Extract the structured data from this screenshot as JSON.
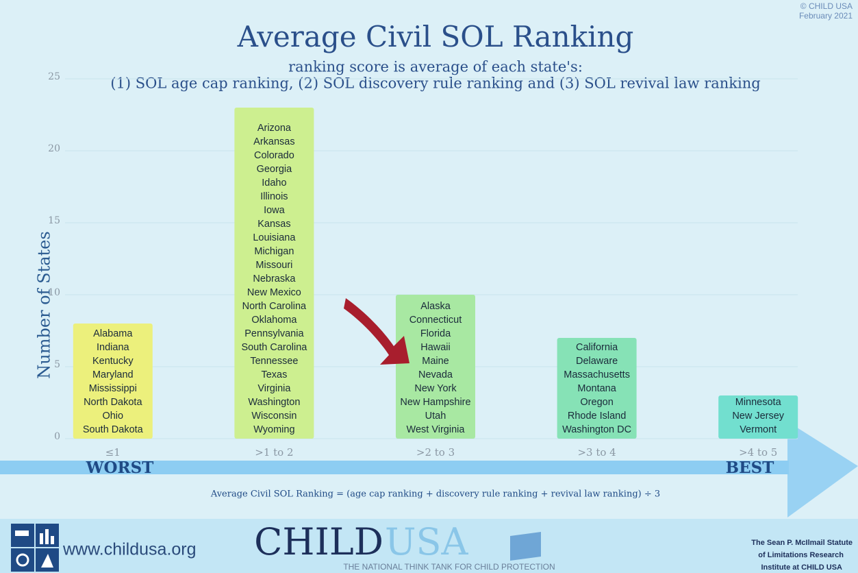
{
  "chart_data": {
    "type": "bar",
    "title": "Average Civil SOL Ranking",
    "subtitle": [
      "ranking score is average of each state's:",
      "(1)  SOL age cap ranking, (2) SOL discovery rule ranking and (3) SOL revival law ranking"
    ],
    "ylabel": "Number of States",
    "categories": [
      "≤1",
      ">1 to 2",
      ">2 to 3",
      ">3 to 4",
      ">4 to 5"
    ],
    "values": [
      8,
      23,
      10,
      7,
      3
    ],
    "colors": [
      "#ecf07c",
      "#cdef90",
      "#a8e8a2",
      "#86e2b6",
      "#72dfcf"
    ],
    "states": [
      [
        "Alabama",
        "Indiana",
        "Kentucky",
        "Maryland",
        "Mississippi",
        "North Dakota",
        "Ohio",
        "South Dakota"
      ],
      [
        "Arizona",
        "Arkansas",
        "Colorado",
        "Georgia",
        "Idaho",
        "Illinois",
        "Iowa",
        "Kansas",
        "Louisiana",
        "Michigan",
        "Missouri",
        "Nebraska",
        "New Mexico",
        "North Carolina",
        "Oklahoma",
        "Pennsylvania",
        "South Carolina",
        "Tennessee",
        "Texas",
        "Virginia",
        "Washington",
        "Wisconsin",
        "Wyoming"
      ],
      [
        "Alaska",
        "Connecticut",
        "Florida",
        "Hawaii",
        "Maine",
        "Nevada",
        "New York",
        "New Hampshire",
        "Utah",
        "West Virginia"
      ],
      [
        "California",
        "Delaware",
        "Massachusetts",
        "Montana",
        "Oregon",
        "Rhode Island",
        "Washington DC"
      ],
      [
        "Minnesota",
        "New Jersey",
        "Vermont"
      ]
    ],
    "ylim": [
      0,
      25
    ],
    "yticks": [
      0,
      5,
      10,
      15,
      20,
      25
    ],
    "grid": true
  },
  "scale": {
    "worst": "WORST",
    "best": "BEST"
  },
  "formula": "Average Civil SOL Ranking = (age cap ranking + discovery rule ranking + revival law ranking)  ÷ 3",
  "copyright": [
    "© CHILD USA",
    "February 2021"
  ],
  "footer": {
    "website": "www.childusa.org",
    "logo": [
      "CHILD",
      "USA"
    ],
    "tagline": "THE NATIONAL THINK TANK FOR CHILD PROTECTION",
    "institute": [
      "The Sean P. McIlmail Statute",
      "of Limitations Research",
      "Institute at CHILD USA"
    ]
  }
}
